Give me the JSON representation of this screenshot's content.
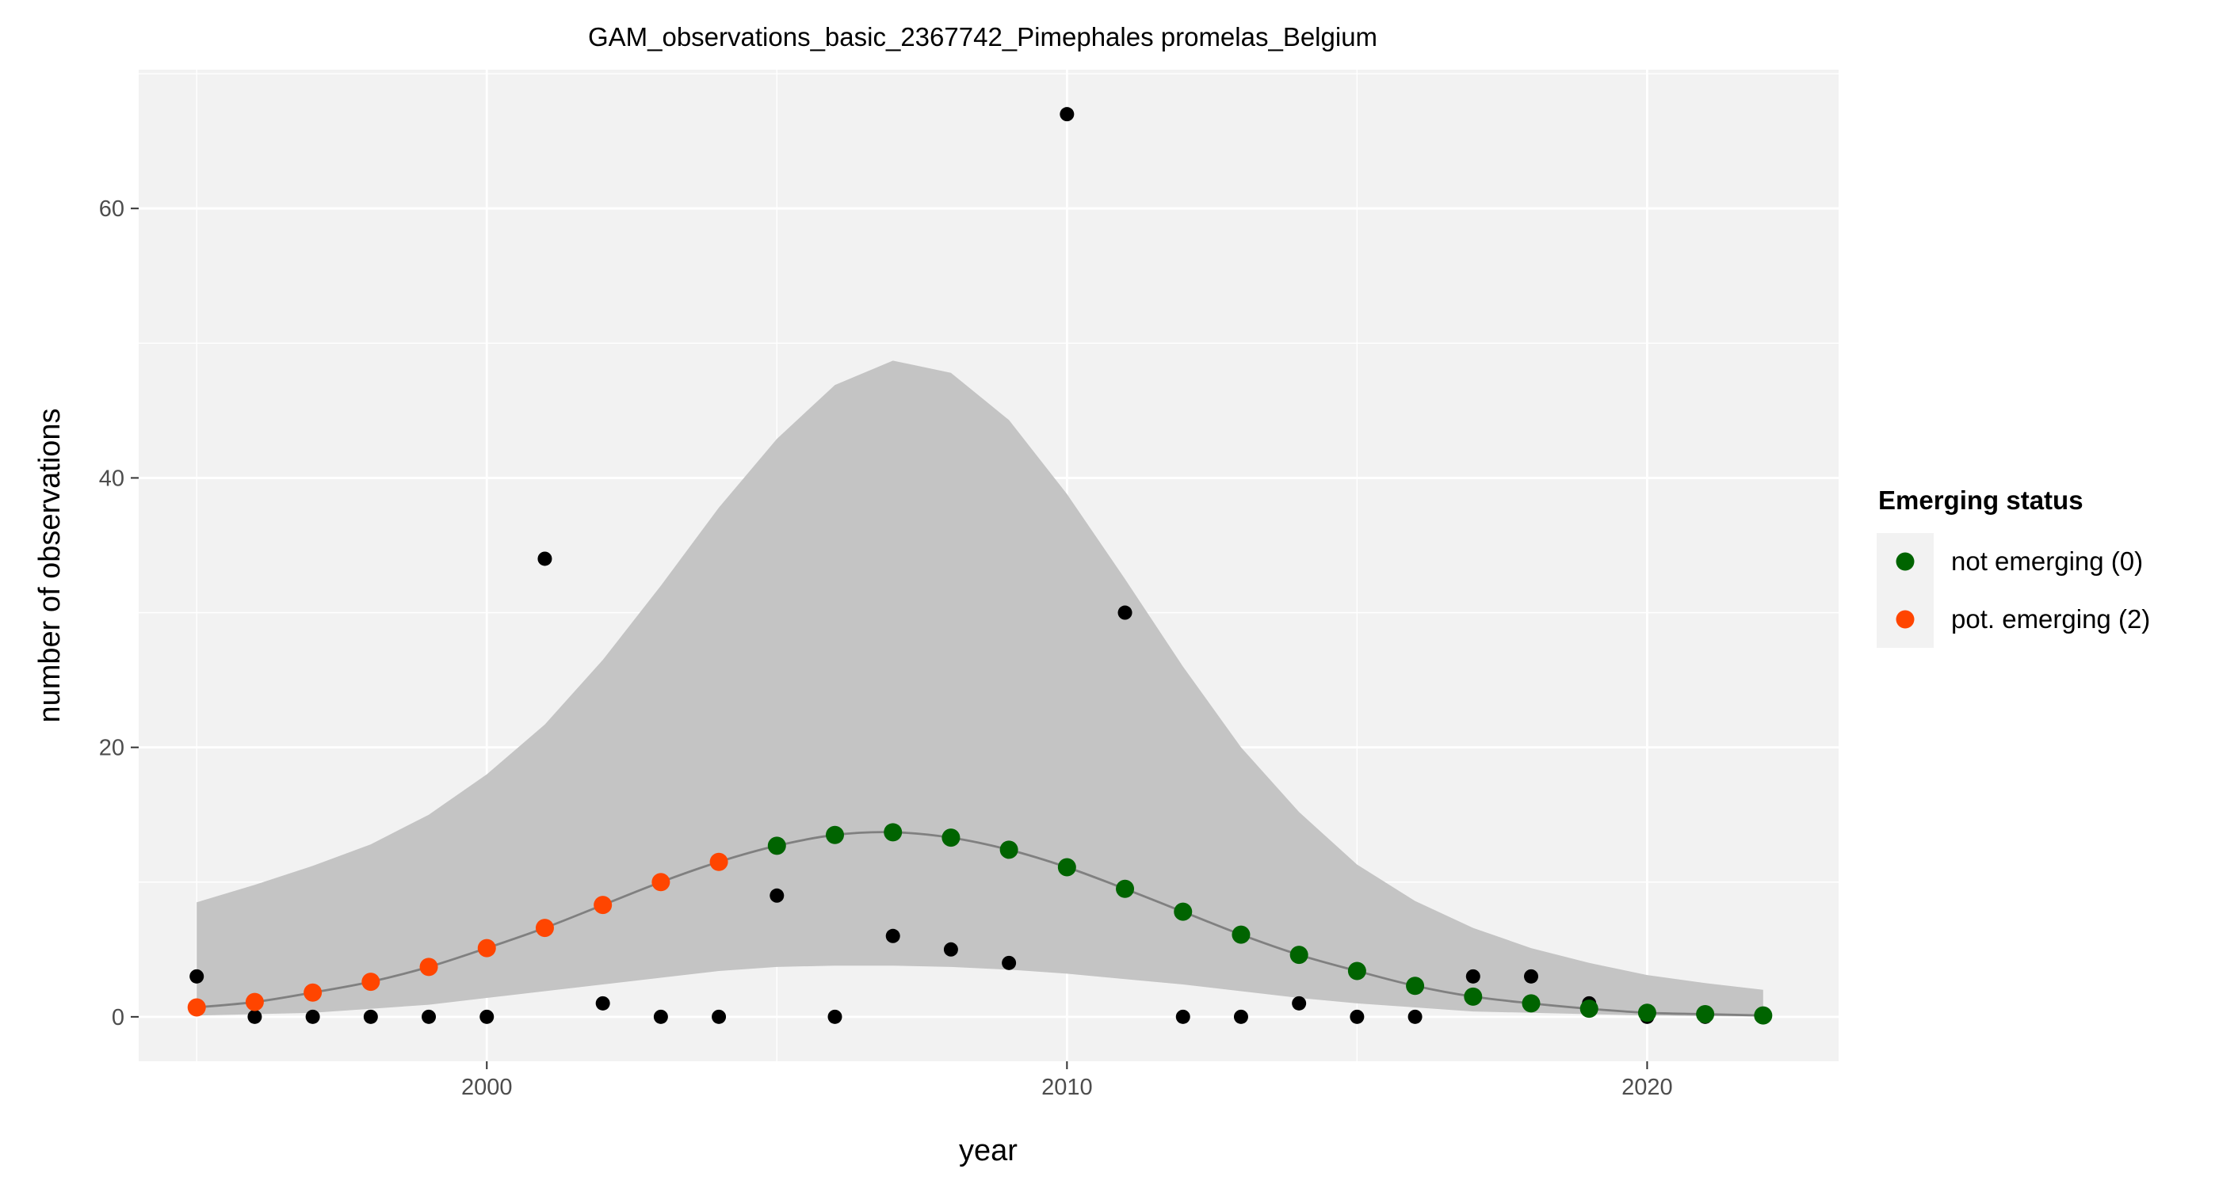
{
  "chart_data": {
    "type": "scatter",
    "title": "GAM_observations_basic_2367742_Pimephales promelas_Belgium",
    "xlabel": "year",
    "ylabel": "number of observations",
    "xlim": [
      1994.0,
      2023.3
    ],
    "ylim": [
      -3.3,
      70.3
    ],
    "x_ticks": [
      2000,
      2010,
      2020
    ],
    "y_ticks": [
      0,
      20,
      40,
      60
    ],
    "grid": true,
    "legend_position": "right",
    "legend_title": "Emerging status",
    "observations": {
      "x": [
        1995,
        1996,
        1997,
        1998,
        1999,
        2000,
        2001,
        2002,
        2003,
        2004,
        2005,
        2006,
        2007,
        2008,
        2009,
        2010,
        2011,
        2012,
        2013,
        2014,
        2015,
        2016,
        2017,
        2018,
        2019,
        2020,
        2021,
        2022
      ],
      "y": [
        3,
        0,
        0,
        0,
        0,
        0,
        34,
        1,
        0,
        0,
        9,
        0,
        6,
        5,
        4,
        67,
        30,
        0,
        0,
        1,
        0,
        0,
        3,
        3,
        1,
        0,
        0,
        0
      ]
    },
    "fit": {
      "x": [
        1995,
        1996,
        1997,
        1998,
        1999,
        2000,
        2001,
        2002,
        2003,
        2004,
        2005,
        2006,
        2007,
        2008,
        2009,
        2010,
        2011,
        2012,
        2013,
        2014,
        2015,
        2016,
        2017,
        2018,
        2019,
        2020,
        2021,
        2022
      ],
      "y": [
        0.7,
        1.1,
        1.8,
        2.6,
        3.7,
        5.1,
        6.6,
        8.3,
        10.0,
        11.5,
        12.7,
        13.5,
        13.7,
        13.3,
        12.4,
        11.1,
        9.5,
        7.8,
        6.1,
        4.6,
        3.4,
        2.3,
        1.5,
        1.0,
        0.6,
        0.3,
        0.2,
        0.1
      ],
      "status": [
        2,
        2,
        2,
        2,
        2,
        2,
        2,
        2,
        2,
        2,
        0,
        0,
        0,
        0,
        0,
        0,
        0,
        0,
        0,
        0,
        0,
        0,
        0,
        0,
        0,
        0,
        0,
        0
      ]
    },
    "ci_lower": [
      0.1,
      0.2,
      0.3,
      0.6,
      0.9,
      1.4,
      1.9,
      2.4,
      2.9,
      3.4,
      3.7,
      3.8,
      3.8,
      3.7,
      3.5,
      3.2,
      2.8,
      2.4,
      1.9,
      1.4,
      1.0,
      0.7,
      0.4,
      0.3,
      0.2,
      0.1,
      0.05,
      0.02
    ],
    "ci_upper": [
      8.5,
      9.8,
      11.2,
      12.8,
      15.0,
      18.0,
      21.7,
      26.5,
      32.0,
      37.8,
      42.9,
      46.9,
      48.7,
      47.8,
      44.3,
      38.8,
      32.5,
      26.0,
      20.0,
      15.2,
      11.3,
      8.6,
      6.6,
      5.1,
      4.0,
      3.1,
      2.5,
      2.0
    ],
    "series": [
      {
        "name": "not emerging (0)",
        "status": 0,
        "color": "#006400"
      },
      {
        "name": "pot. emerging (2)",
        "status": 2,
        "color": "#FF4500"
      }
    ],
    "colors": {
      "panel": "#F2F2F2",
      "grid": "#FFFFFF",
      "ci_band": "#C4C4C4",
      "fit_line": "#808080",
      "observation": "#000000"
    }
  }
}
